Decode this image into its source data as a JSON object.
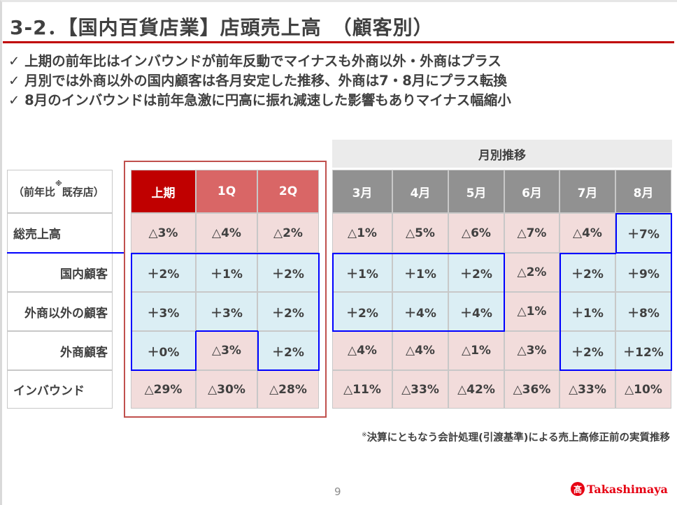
{
  "title": "3-2．【国内百貨店業】店頭売上高　（顧客別）",
  "bullets": [
    "✓  上期の前年比はインバウンドが前年反動でマイナスも外商以外・外商はプラス",
    "✓  月別では外商以外の国内顧客は各月安定した推移、外商は7・8月にプラス転換",
    "✓  8月のインバウンドは前年急激に円高に振れ減速した影響もありマイナス幅縮小"
  ],
  "table": {
    "corner_label": "（前年比",
    "corner_mark": "※",
    "corner_label2": "既存店）",
    "monthly_header": "月別推移",
    "columns": [
      "上期",
      "1Q",
      "2Q",
      "3月",
      "4月",
      "5月",
      "6月",
      "7月",
      "8月"
    ],
    "rows": [
      {
        "label": "総売上高",
        "values": [
          "△3%",
          "△4%",
          "△2%",
          "△1%",
          "△5%",
          "△6%",
          "△7%",
          "△4%",
          "＋7%"
        ],
        "shade": [
          "p",
          "p",
          "p",
          "p",
          "p",
          "p",
          "p",
          "p",
          "b"
        ]
      },
      {
        "label": "国内顧客",
        "values": [
          "＋2%",
          "＋1%",
          "＋2%",
          "＋1%",
          "＋1%",
          "＋2%",
          "△2%",
          "＋2%",
          "＋9%"
        ],
        "shade": [
          "b",
          "b",
          "b",
          "b",
          "b",
          "b",
          "p",
          "b",
          "b"
        ]
      },
      {
        "label": "外商以外の顧客",
        "values": [
          "＋3%",
          "＋3%",
          "＋2%",
          "＋2%",
          "＋4%",
          "＋4%",
          "△1%",
          "＋1%",
          "＋8%"
        ],
        "shade": [
          "b",
          "b",
          "b",
          "b",
          "b",
          "b",
          "p",
          "b",
          "b"
        ]
      },
      {
        "label": "外商顧客",
        "values": [
          "＋0%",
          "△3%",
          "＋2%",
          "△4%",
          "△4%",
          "△1%",
          "△3%",
          "＋2%",
          "＋12%"
        ],
        "shade": [
          "b",
          "p",
          "b",
          "p",
          "p",
          "p",
          "p",
          "b",
          "b"
        ]
      },
      {
        "label": "インバウンド",
        "values": [
          "△29%",
          "△30%",
          "△28%",
          "△11%",
          "△33%",
          "△42%",
          "△36%",
          "△33%",
          "△10%"
        ],
        "shade": [
          "p",
          "p",
          "p",
          "p",
          "p",
          "p",
          "p",
          "p",
          "p"
        ]
      }
    ]
  },
  "colors": {
    "pink": "#f2dcdb",
    "blue": "#dbeef4",
    "outline": "#0000ff",
    "half_header": "#c00000",
    "quarter_header": "#d96666",
    "month_header": "#919191",
    "accent": "#c00000"
  },
  "footnote_mark": "※",
  "footnote": "決算にともなう会計処理(引渡基準)による売上高修正前の実質推移",
  "page_number": "9",
  "logo": {
    "seal": "髙",
    "text": "Takashimaya"
  }
}
